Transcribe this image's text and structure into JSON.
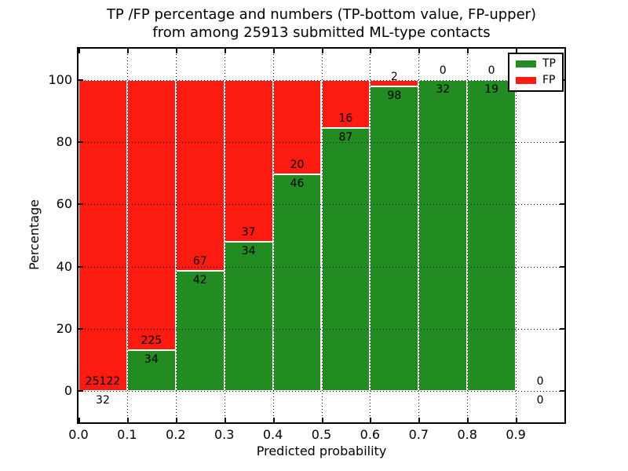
{
  "chart": {
    "title_line1": "TP /FP percentage and numbers (TP-bottom value, FP-upper)",
    "title_line2": "from among 25913 submitted ML-type contacts",
    "xlabel": "Predicted probability",
    "ylabel": "Percentage"
  },
  "chart_data": {
    "type": "bar",
    "stacked": true,
    "title": "TP /FP percentage and numbers (TP-bottom value, FP-upper) from among 25913 submitted ML-type contacts",
    "xlabel": "Predicted probability",
    "ylabel": "Percentage",
    "total_contacts": 25913,
    "x_tick_labels": [
      "0.0",
      "0.1",
      "0.2",
      "0.3",
      "0.4",
      "0.5",
      "0.6",
      "0.7",
      "0.8",
      "0.9"
    ],
    "y_ticks": [
      0,
      20,
      40,
      60,
      80,
      100
    ],
    "xlim": [
      0.0,
      1.0
    ],
    "ylim": [
      -10,
      110
    ],
    "bin_width": 0.1,
    "grid": "dotted",
    "bar_unit": "percent of bin (TP+FP stack to 100%)",
    "series": [
      {
        "name": "TP",
        "color": "#228B22",
        "counts": [
          32,
          34,
          42,
          34,
          46,
          87,
          98,
          32,
          19,
          0
        ]
      },
      {
        "name": "FP",
        "color": "#FB1B10",
        "counts": [
          25122,
          225,
          67,
          37,
          20,
          16,
          2,
          0,
          0,
          0
        ]
      }
    ],
    "tp_percent_of_bin": [
      0.13,
      13.13,
      38.53,
      47.89,
      69.7,
      84.47,
      98.0,
      100.0,
      100.0,
      null
    ],
    "legend": {
      "position": "upper right",
      "entries": [
        {
          "label": "TP",
          "color": "#228B22"
        },
        {
          "label": "FP",
          "color": "#FB1B10"
        }
      ]
    }
  }
}
